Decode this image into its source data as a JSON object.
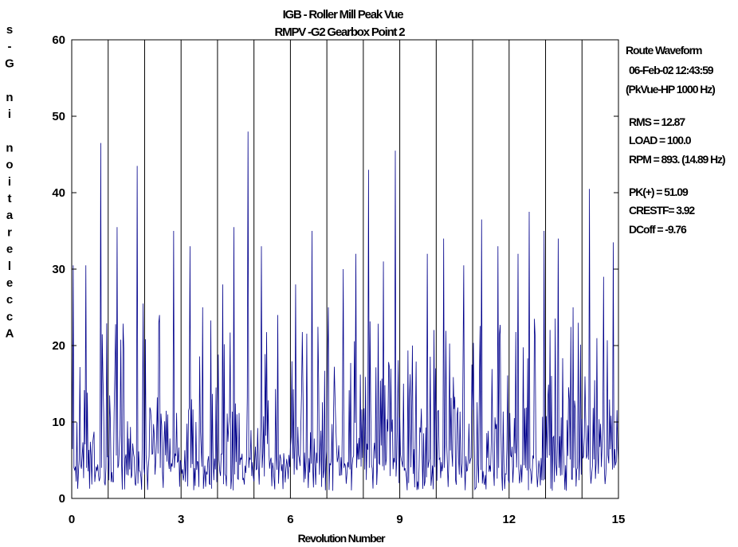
{
  "chart_data": {
    "type": "line",
    "title": [
      "IGB - Roller Mill Peak Vue",
      "RMPV   -G2  Gearbox Point 2"
    ],
    "xlabel": "Revolution Number",
    "ylabel": "Acceleration in G-s",
    "ylabel_chars": [
      "s",
      "-",
      "G",
      "",
      "n",
      "i",
      "",
      "n",
      "o",
      "i",
      "t",
      "a",
      "r",
      "e",
      "l",
      "e",
      "c",
      "c",
      "A"
    ],
    "xlim": [
      0,
      15
    ],
    "ylim": [
      0,
      60
    ],
    "x_ticks": [
      0,
      3,
      6,
      9,
      12,
      15
    ],
    "x_tick_labels": [
      "0",
      "3",
      "6",
      "9",
      "12",
      "15"
    ],
    "y_ticks": [
      0,
      10,
      20,
      30,
      40,
      50,
      60
    ],
    "y_tick_labels": [
      "0",
      "10",
      "20",
      "30",
      "40",
      "50",
      "60"
    ],
    "revolution_markers": [
      1,
      2,
      3,
      4,
      5,
      6,
      7,
      8,
      9,
      10,
      11,
      12,
      13,
      14
    ],
    "grid": false,
    "line_color": "#00008b",
    "samples_per_revolution": 49,
    "peaks": [
      {
        "x": 0.05,
        "y": 30.5
      },
      {
        "x": 0.38,
        "y": 30.5
      },
      {
        "x": 0.8,
        "y": 46.5
      },
      {
        "x": 1.25,
        "y": 35.5
      },
      {
        "x": 1.8,
        "y": 43.5
      },
      {
        "x": 1.95,
        "y": 25.5
      },
      {
        "x": 2.4,
        "y": 24
      },
      {
        "x": 2.8,
        "y": 35
      },
      {
        "x": 3.25,
        "y": 33
      },
      {
        "x": 3.6,
        "y": 25
      },
      {
        "x": 4.15,
        "y": 28
      },
      {
        "x": 4.45,
        "y": 35.5
      },
      {
        "x": 4.83,
        "y": 48
      },
      {
        "x": 5.2,
        "y": 33
      },
      {
        "x": 5.65,
        "y": 24
      },
      {
        "x": 6.15,
        "y": 28
      },
      {
        "x": 6.6,
        "y": 35
      },
      {
        "x": 7.05,
        "y": 25
      },
      {
        "x": 7.45,
        "y": 30
      },
      {
        "x": 7.8,
        "y": 32
      },
      {
        "x": 8.15,
        "y": 43
      },
      {
        "x": 8.55,
        "y": 31
      },
      {
        "x": 8.88,
        "y": 45.5
      },
      {
        "x": 9.35,
        "y": 20
      },
      {
        "x": 9.75,
        "y": 32
      },
      {
        "x": 10.2,
        "y": 34
      },
      {
        "x": 10.75,
        "y": 30.5
      },
      {
        "x": 11.25,
        "y": 36.5
      },
      {
        "x": 11.7,
        "y": 33
      },
      {
        "x": 12.25,
        "y": 32
      },
      {
        "x": 12.55,
        "y": 37.5
      },
      {
        "x": 12.95,
        "y": 35
      },
      {
        "x": 13.35,
        "y": 34
      },
      {
        "x": 13.75,
        "y": 25
      },
      {
        "x": 14.2,
        "y": 40.5
      },
      {
        "x": 14.6,
        "y": 29
      },
      {
        "x": 14.85,
        "y": 33.5
      }
    ]
  },
  "info_panel": {
    "line1": "Route Waveform",
    "line2": "06-Feb-02 12:43:59",
    "line3": "(PkVue-HP 1000 Hz)",
    "rms": "RMS = 12.87",
    "load": "LOAD = 100.0",
    "rpm": "RPM = 893. (14.89 Hz)",
    "pk": "PK(+) = 51.09",
    "crestf": "CRESTF= 3.92",
    "dcoff": "DCoff = -9.76"
  }
}
